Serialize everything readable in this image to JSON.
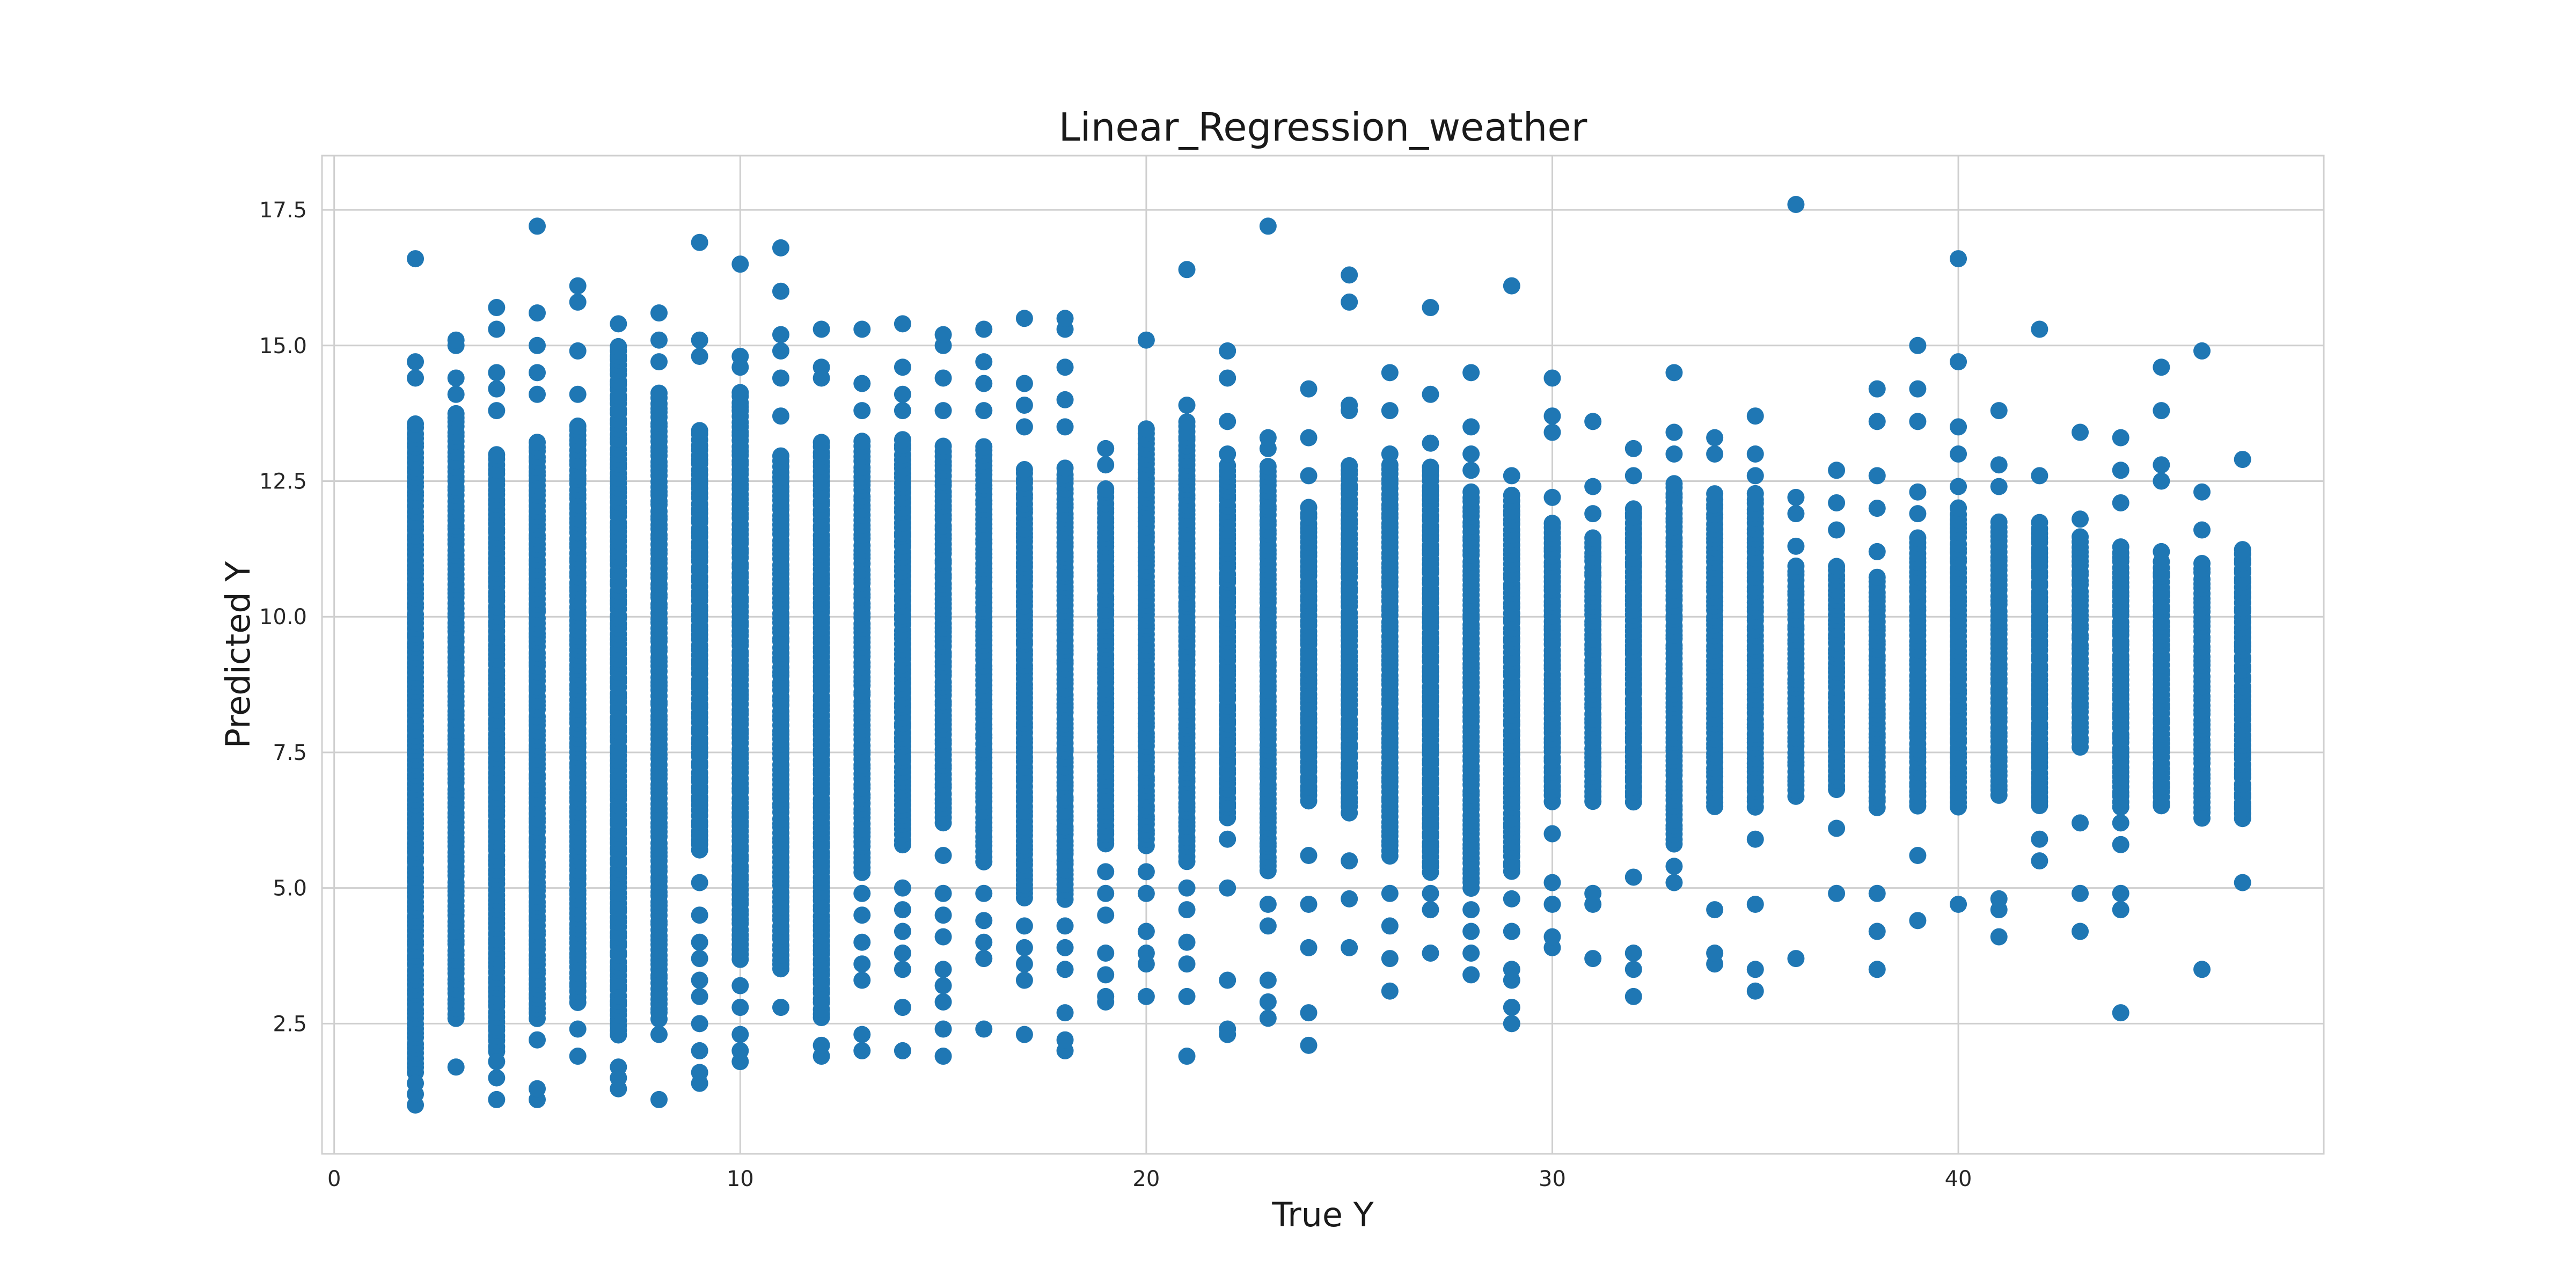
{
  "chart_data": {
    "type": "scatter",
    "title": "Linear_Regression_weather",
    "xlabel": "True Y",
    "ylabel": "Predicted Y",
    "xlim": [
      -0.3,
      49.0
    ],
    "ylim": [
      0.1,
      18.5
    ],
    "xticks": [
      0,
      10,
      20,
      30,
      40
    ],
    "xtick_labels": [
      "0",
      "10",
      "20",
      "30",
      "40"
    ],
    "yticks": [
      2.5,
      5.0,
      7.5,
      10.0,
      12.5,
      15.0,
      17.5
    ],
    "ytick_labels": [
      "2.5",
      "5.0",
      "7.5",
      "10.0",
      "12.5",
      "15.0",
      "17.5"
    ],
    "grid": true,
    "legend": "none",
    "color": "#1f77b4",
    "columns": [
      {
        "x": 2,
        "dense": [
          1.6,
          13.6
        ],
        "outliers": [
          1.0,
          1.2,
          1.4,
          14.4,
          14.7,
          16.6
        ]
      },
      {
        "x": 3,
        "dense": [
          2.6,
          13.8
        ],
        "outliers": [
          1.7,
          14.1,
          14.4,
          15.0,
          15.1
        ]
      },
      {
        "x": 4,
        "dense": [
          2.0,
          13.0
        ],
        "outliers": [
          1.1,
          1.5,
          1.8,
          13.8,
          14.2,
          14.5,
          15.3,
          15.7
        ]
      },
      {
        "x": 5,
        "dense": [
          2.6,
          13.3
        ],
        "outliers": [
          1.1,
          1.3,
          2.2,
          14.1,
          14.5,
          15.0,
          15.6,
          17.2
        ]
      },
      {
        "x": 6,
        "dense": [
          2.9,
          13.6
        ],
        "outliers": [
          1.9,
          2.4,
          14.1,
          14.9,
          15.8,
          16.1
        ]
      },
      {
        "x": 7,
        "dense": [
          2.3,
          15.0
        ],
        "outliers": [
          1.3,
          1.5,
          1.7,
          15.4
        ]
      },
      {
        "x": 8,
        "dense": [
          2.6,
          14.2
        ],
        "outliers": [
          1.1,
          2.3,
          14.7,
          15.1,
          15.6
        ]
      },
      {
        "x": 9,
        "dense": [
          5.7,
          13.5
        ],
        "outliers": [
          1.4,
          1.6,
          2.0,
          2.5,
          3.0,
          3.3,
          3.7,
          4.0,
          4.5,
          5.1,
          14.8,
          15.1,
          16.9
        ]
      },
      {
        "x": 10,
        "dense": [
          3.7,
          14.2
        ],
        "outliers": [
          1.8,
          2.0,
          2.3,
          2.8,
          3.2,
          14.6,
          14.8,
          16.5
        ]
      },
      {
        "x": 11,
        "dense": [
          3.5,
          13.0
        ],
        "outliers": [
          2.8,
          13.7,
          14.4,
          14.9,
          15.2,
          16.0,
          16.8
        ]
      },
      {
        "x": 12,
        "dense": [
          2.6,
          13.3
        ],
        "outliers": [
          1.9,
          2.1,
          14.4,
          14.6,
          15.3
        ]
      },
      {
        "x": 13,
        "dense": [
          5.3,
          13.3
        ],
        "outliers": [
          2.0,
          2.3,
          3.3,
          3.6,
          4.0,
          4.5,
          4.9,
          13.8,
          14.3,
          15.3
        ]
      },
      {
        "x": 14,
        "dense": [
          5.8,
          13.3
        ],
        "outliers": [
          2.0,
          2.8,
          3.5,
          3.8,
          4.2,
          4.6,
          5.0,
          13.8,
          14.1,
          14.6,
          15.4
        ]
      },
      {
        "x": 15,
        "dense": [
          6.2,
          13.2
        ],
        "outliers": [
          1.9,
          2.4,
          2.9,
          3.2,
          3.5,
          4.1,
          4.5,
          4.9,
          5.6,
          13.8,
          14.4,
          15.0,
          15.2
        ]
      },
      {
        "x": 16,
        "dense": [
          5.5,
          13.2
        ],
        "outliers": [
          2.4,
          3.7,
          4.0,
          4.4,
          4.9,
          13.8,
          14.3,
          14.7,
          15.3
        ]
      },
      {
        "x": 17,
        "dense": [
          4.8,
          12.8
        ],
        "outliers": [
          2.3,
          3.3,
          3.6,
          3.9,
          4.3,
          13.5,
          13.9,
          14.3,
          15.5
        ]
      },
      {
        "x": 18,
        "dense": [
          4.8,
          12.8
        ],
        "outliers": [
          2.0,
          2.2,
          2.7,
          3.5,
          3.9,
          4.3,
          13.5,
          14.0,
          14.6,
          15.3,
          15.5
        ]
      },
      {
        "x": 19,
        "dense": [
          5.8,
          12.4
        ],
        "outliers": [
          2.9,
          3.0,
          3.4,
          3.8,
          4.5,
          4.9,
          5.3,
          12.8,
          13.1
        ]
      },
      {
        "x": 20,
        "dense": [
          5.8,
          13.5
        ],
        "outliers": [
          3.0,
          3.6,
          3.8,
          4.2,
          4.9,
          5.3,
          15.1
        ]
      },
      {
        "x": 21,
        "dense": [
          5.5,
          13.6
        ],
        "outliers": [
          1.9,
          3.0,
          3.6,
          4.0,
          4.6,
          5.0,
          13.9,
          16.4
        ]
      },
      {
        "x": 22,
        "dense": [
          6.3,
          12.8
        ],
        "outliers": [
          2.3,
          2.4,
          3.3,
          5.0,
          5.9,
          13.0,
          13.6,
          14.4,
          14.9
        ]
      },
      {
        "x": 23,
        "dense": [
          5.3,
          12.8
        ],
        "outliers": [
          2.6,
          2.9,
          3.3,
          4.3,
          4.7,
          13.1,
          13.3,
          17.2
        ]
      },
      {
        "x": 24,
        "dense": [
          6.6,
          12.0
        ],
        "outliers": [
          2.1,
          2.7,
          3.9,
          4.7,
          5.6,
          12.6,
          13.3,
          14.2
        ]
      },
      {
        "x": 25,
        "dense": [
          6.4,
          12.8
        ],
        "outliers": [
          3.9,
          4.8,
          5.5,
          13.8,
          13.9,
          15.8,
          16.3
        ]
      },
      {
        "x": 26,
        "dense": [
          5.6,
          12.8
        ],
        "outliers": [
          3.1,
          3.7,
          4.3,
          4.9,
          13.0,
          13.8,
          14.5
        ]
      },
      {
        "x": 27,
        "dense": [
          5.3,
          12.8
        ],
        "outliers": [
          3.8,
          4.6,
          4.9,
          13.2,
          14.1,
          15.7
        ]
      },
      {
        "x": 28,
        "dense": [
          5.0,
          12.3
        ],
        "outliers": [
          3.4,
          3.8,
          4.2,
          4.6,
          12.7,
          13.0,
          13.5,
          14.5
        ]
      },
      {
        "x": 29,
        "dense": [
          5.3,
          12.3
        ],
        "outliers": [
          2.5,
          2.8,
          3.3,
          3.5,
          4.2,
          4.8,
          12.6,
          16.1
        ]
      },
      {
        "x": 30,
        "dense": [
          6.6,
          11.8
        ],
        "outliers": [
          3.9,
          4.1,
          4.7,
          5.1,
          6.0,
          12.2,
          13.4,
          13.7,
          14.4
        ]
      },
      {
        "x": 31,
        "dense": [
          6.6,
          11.5
        ],
        "outliers": [
          3.7,
          4.7,
          4.9,
          11.9,
          12.4,
          13.6
        ]
      },
      {
        "x": 32,
        "dense": [
          6.6,
          12.0
        ],
        "outliers": [
          3.0,
          3.5,
          3.8,
          5.2,
          12.6,
          13.1
        ]
      },
      {
        "x": 33,
        "dense": [
          5.8,
          12.5
        ],
        "outliers": [
          5.1,
          5.4,
          13.0,
          13.4,
          14.5
        ]
      },
      {
        "x": 34,
        "dense": [
          6.5,
          12.3
        ],
        "outliers": [
          3.6,
          3.8,
          4.6,
          13.0,
          13.3
        ]
      },
      {
        "x": 35,
        "dense": [
          6.5,
          12.3
        ],
        "outliers": [
          3.1,
          3.5,
          4.7,
          5.9,
          12.6,
          13.0,
          13.7
        ]
      },
      {
        "x": 36,
        "dense": [
          6.7,
          11.0
        ],
        "outliers": [
          3.7,
          11.3,
          11.9,
          12.2,
          17.6
        ]
      },
      {
        "x": 37,
        "dense": [
          6.8,
          11.0
        ],
        "outliers": [
          4.9,
          6.1,
          11.6,
          12.1,
          12.7
        ]
      },
      {
        "x": 38,
        "dense": [
          6.5,
          10.8
        ],
        "outliers": [
          3.5,
          4.2,
          4.9,
          11.2,
          12.0,
          12.6,
          13.6,
          14.2
        ]
      },
      {
        "x": 39,
        "dense": [
          6.5,
          11.5
        ],
        "outliers": [
          4.4,
          5.6,
          11.9,
          12.3,
          13.6,
          14.2,
          15.0
        ]
      },
      {
        "x": 40,
        "dense": [
          6.5,
          12.0
        ],
        "outliers": [
          4.7,
          12.4,
          13.0,
          13.5,
          14.7,
          16.6
        ]
      },
      {
        "x": 41,
        "dense": [
          6.7,
          11.8
        ],
        "outliers": [
          4.1,
          4.6,
          4.8,
          12.4,
          12.8,
          13.8
        ]
      },
      {
        "x": 42,
        "dense": [
          6.5,
          11.8
        ],
        "outliers": [
          5.5,
          5.9,
          12.6,
          15.3
        ]
      },
      {
        "x": 43,
        "dense": [
          7.6,
          11.5
        ],
        "outliers": [
          4.2,
          4.9,
          6.2,
          11.8,
          13.4
        ]
      },
      {
        "x": 44,
        "dense": [
          6.5,
          11.3
        ],
        "outliers": [
          2.7,
          4.6,
          4.9,
          5.8,
          6.2,
          12.1,
          12.7,
          13.3
        ]
      },
      {
        "x": 45,
        "dense": [
          6.5,
          11.0
        ],
        "outliers": [
          11.2,
          12.5,
          12.8,
          13.8,
          14.6
        ]
      },
      {
        "x": 46,
        "dense": [
          6.3,
          11.0
        ],
        "outliers": [
          3.5,
          11.6,
          12.3,
          14.9
        ]
      },
      {
        "x": 47,
        "dense": [
          6.3,
          11.3
        ],
        "outliers": [
          5.1,
          6.5,
          12.9
        ]
      }
    ]
  }
}
